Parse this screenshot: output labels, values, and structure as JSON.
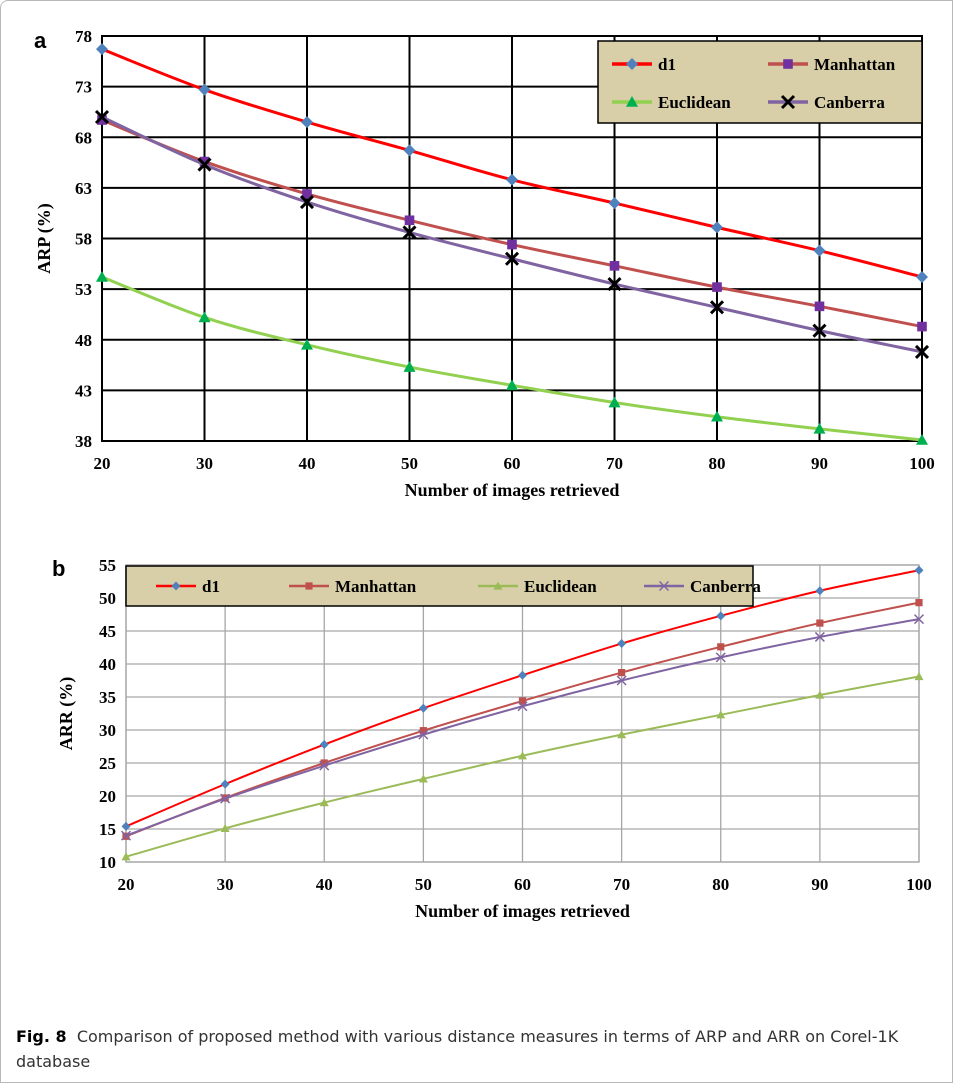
{
  "figure": {
    "caption_label": "Fig. 8",
    "caption_text": "Comparison of proposed method with various distance measures in terms of ARP and ARR on Corel-1K database"
  },
  "chart_data": [
    {
      "panel": "a",
      "type": "line",
      "xlabel": "Number of images retrieved",
      "ylabel": "ARP (%)",
      "x": [
        20,
        30,
        40,
        50,
        60,
        70,
        80,
        90,
        100
      ],
      "xlim": [
        20,
        100
      ],
      "ylim": [
        38,
        78
      ],
      "yticks": [
        38,
        43,
        48,
        53,
        58,
        63,
        68,
        73,
        78
      ],
      "grid": true,
      "legend_position": "top-right",
      "legend": {
        "bg": "#d8cfa8"
      },
      "series": [
        {
          "name": "d1",
          "color": "#ff0000",
          "marker": "diamond",
          "marker_color": "#4f81bd",
          "values": [
            76.7,
            72.7,
            69.5,
            66.7,
            63.8,
            61.5,
            59.1,
            56.8,
            54.2
          ]
        },
        {
          "name": "Manhattan",
          "color": "#c0504d",
          "marker": "square",
          "marker_color": "#7030a0",
          "values": [
            69.7,
            65.6,
            62.4,
            59.8,
            57.4,
            55.3,
            53.2,
            51.3,
            49.3
          ]
        },
        {
          "name": "Euclidean",
          "color": "#92d050",
          "marker": "triangle",
          "marker_color": "#00b050",
          "values": [
            54.2,
            50.2,
            47.5,
            45.3,
            43.5,
            41.8,
            40.4,
            39.2,
            38.1
          ]
        },
        {
          "name": "Canberra",
          "color": "#8064a2",
          "marker": "x",
          "marker_color": "#000000",
          "values": [
            70.0,
            65.3,
            61.6,
            58.6,
            56.0,
            53.5,
            51.2,
            48.9,
            46.8
          ]
        }
      ]
    },
    {
      "panel": "b",
      "type": "line",
      "xlabel": "Number of images retrieved",
      "ylabel": "ARR (%)",
      "x": [
        20,
        30,
        40,
        50,
        60,
        70,
        80,
        90,
        100
      ],
      "xlim": [
        20,
        100
      ],
      "ylim": [
        10,
        55
      ],
      "yticks": [
        10,
        15,
        20,
        25,
        30,
        35,
        40,
        45,
        50,
        55
      ],
      "grid": true,
      "legend_position": "top",
      "legend": {
        "bg": "#d8cfa8"
      },
      "series": [
        {
          "name": "d1",
          "color": "#ff0000",
          "marker": "diamond",
          "marker_color": "#4f81bd",
          "values": [
            15.4,
            21.8,
            27.8,
            33.3,
            38.3,
            43.1,
            47.3,
            51.1,
            54.2
          ]
        },
        {
          "name": "Manhattan",
          "color": "#c0504d",
          "marker": "square",
          "marker_color": "#c0504d",
          "values": [
            13.9,
            19.7,
            25.0,
            29.9,
            34.4,
            38.7,
            42.6,
            46.2,
            49.3
          ]
        },
        {
          "name": "Euclidean",
          "color": "#9bbb59",
          "marker": "triangle",
          "marker_color": "#9bbb59",
          "values": [
            10.8,
            15.1,
            19.0,
            22.6,
            26.1,
            29.3,
            32.3,
            35.3,
            38.1
          ]
        },
        {
          "name": "Canberra",
          "color": "#8064a2",
          "marker": "x",
          "marker_color": "#8064a2",
          "values": [
            14.0,
            19.6,
            24.6,
            29.3,
            33.6,
            37.5,
            41.0,
            44.1,
            46.8
          ]
        }
      ]
    }
  ]
}
